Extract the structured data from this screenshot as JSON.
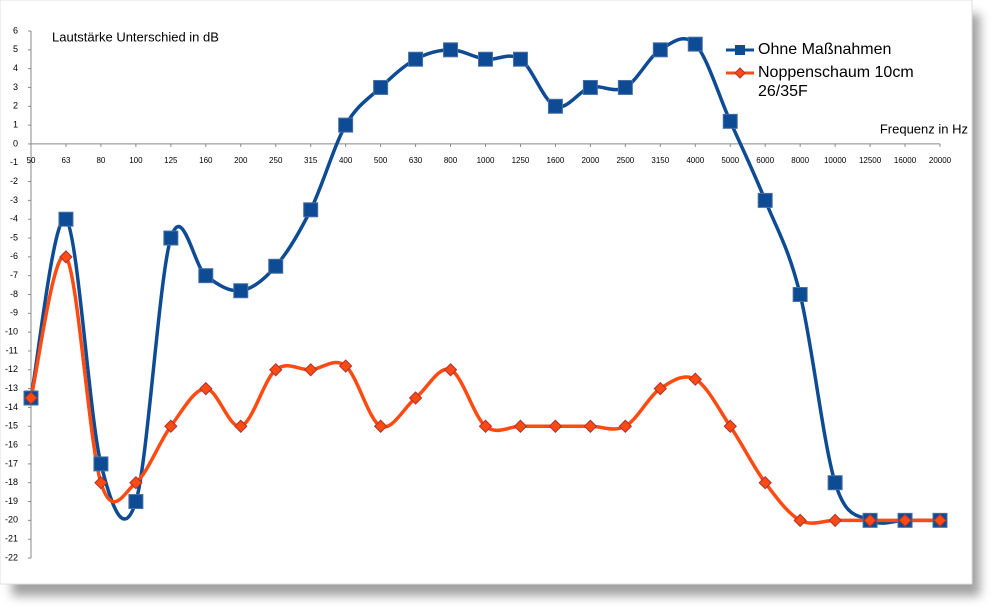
{
  "chart_data": {
    "type": "line",
    "title": "Lautstärke Unterschied in dB",
    "x_label": "Frequenz in Hz",
    "categories": [
      "50",
      "63",
      "80",
      "100",
      "125",
      "160",
      "200",
      "250",
      "315",
      "400",
      "500",
      "630",
      "800",
      "1000",
      "1250",
      "1600",
      "2000",
      "2500",
      "3150",
      "4000",
      "5000",
      "6000",
      "8000",
      "10000",
      "12500",
      "16000",
      "20000"
    ],
    "series": [
      {
        "name": "Ohne Maßnahmen",
        "color": "#0d4c94",
        "marker": "square",
        "values": [
          -13.5,
          -4,
          -17,
          -19,
          -5,
          -7,
          -7.8,
          -6.5,
          -3.5,
          1,
          3,
          4.5,
          5,
          4.5,
          4.5,
          2,
          3,
          3,
          5,
          5.3,
          1.2,
          -3,
          -8,
          -18,
          -20,
          -20,
          -20
        ]
      },
      {
        "name": "Noppenschaum 10cm 26/35F",
        "color": "#ff4a12",
        "marker": "diamond",
        "values": [
          -13.5,
          -6,
          -18,
          -18,
          -15,
          -13,
          -15,
          -12,
          -12,
          -11.8,
          -15,
          -13.5,
          -12,
          -15,
          -15,
          -15,
          -15,
          -15,
          -13,
          -12.5,
          -15,
          -18,
          -20,
          -20,
          -20,
          -20,
          -20
        ]
      }
    ],
    "ylim": [
      -22,
      6
    ],
    "yticks": [
      6,
      5,
      4,
      3,
      2,
      1,
      0,
      -1,
      -2,
      -3,
      -4,
      -5,
      -6,
      -7,
      -8,
      -9,
      -10,
      -11,
      -12,
      -13,
      -14,
      -15,
      -16,
      -17,
      -18,
      -19,
      -20,
      -21,
      -22
    ],
    "smooth": true,
    "grid": false,
    "legend": "top-right"
  }
}
